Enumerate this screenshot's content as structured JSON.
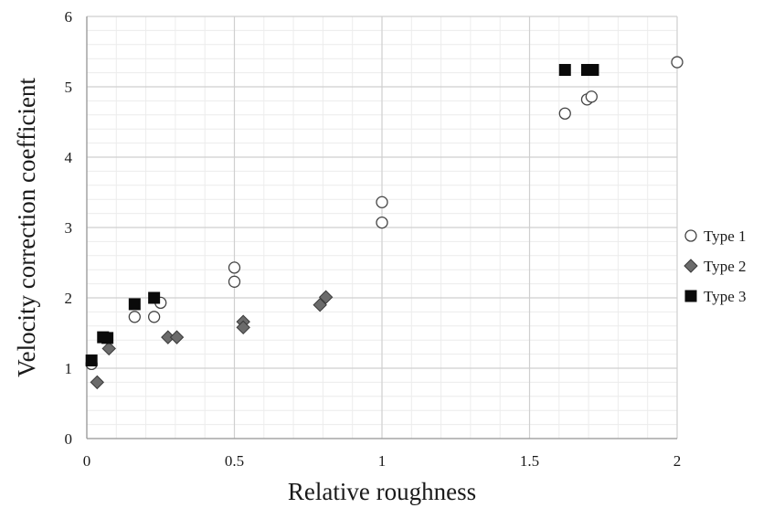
{
  "chart_data": {
    "type": "scatter",
    "title": "",
    "xlabel": "Relative roughness",
    "ylabel": "Velocity correction coefficient",
    "xlim": [
      0,
      2
    ],
    "ylim": [
      0,
      6
    ],
    "x_ticks": [
      0,
      0.5,
      1,
      1.5,
      2
    ],
    "x_tick_labels": [
      "0",
      "0.5",
      "1",
      "1.5",
      "2"
    ],
    "y_ticks": [
      0,
      1,
      2,
      3,
      4,
      5,
      6
    ],
    "y_tick_labels": [
      "0",
      "1",
      "2",
      "3",
      "4",
      "5",
      "6"
    ],
    "grid": true,
    "minor_grid": true,
    "legend_position": "right",
    "series": [
      {
        "name": "Type 1",
        "marker": "circle-open",
        "color": "#ffffff",
        "stroke": "#444444",
        "points": [
          {
            "x": 0.016,
            "y": 1.06
          },
          {
            "x": 0.162,
            "y": 1.73
          },
          {
            "x": 0.228,
            "y": 1.73
          },
          {
            "x": 0.25,
            "y": 1.93
          },
          {
            "x": 0.5,
            "y": 2.43
          },
          {
            "x": 0.5,
            "y": 2.23
          },
          {
            "x": 1.0,
            "y": 3.36
          },
          {
            "x": 1.0,
            "y": 3.07
          },
          {
            "x": 1.62,
            "y": 4.62
          },
          {
            "x": 1.695,
            "y": 4.82
          },
          {
            "x": 1.71,
            "y": 4.86
          },
          {
            "x": 2.0,
            "y": 5.35
          }
        ]
      },
      {
        "name": "Type 2",
        "marker": "diamond",
        "color": "#6b6b6b",
        "stroke": "#3a3a3a",
        "points": [
          {
            "x": 0.035,
            "y": 0.8
          },
          {
            "x": 0.075,
            "y": 1.28
          },
          {
            "x": 0.275,
            "y": 1.44
          },
          {
            "x": 0.305,
            "y": 1.44
          },
          {
            "x": 0.53,
            "y": 1.66
          },
          {
            "x": 0.53,
            "y": 1.58
          },
          {
            "x": 0.79,
            "y": 1.9
          },
          {
            "x": 0.81,
            "y": 2.01
          }
        ]
      },
      {
        "name": "Type 3",
        "marker": "square",
        "color": "#0a0a0a",
        "stroke": "#0a0a0a",
        "points": [
          {
            "x": 0.016,
            "y": 1.11
          },
          {
            "x": 0.055,
            "y": 1.44
          },
          {
            "x": 0.07,
            "y": 1.43
          },
          {
            "x": 0.162,
            "y": 1.91
          },
          {
            "x": 0.228,
            "y": 2.0
          },
          {
            "x": 1.62,
            "y": 5.24
          },
          {
            "x": 1.695,
            "y": 5.24
          },
          {
            "x": 1.715,
            "y": 5.24
          }
        ]
      }
    ]
  }
}
